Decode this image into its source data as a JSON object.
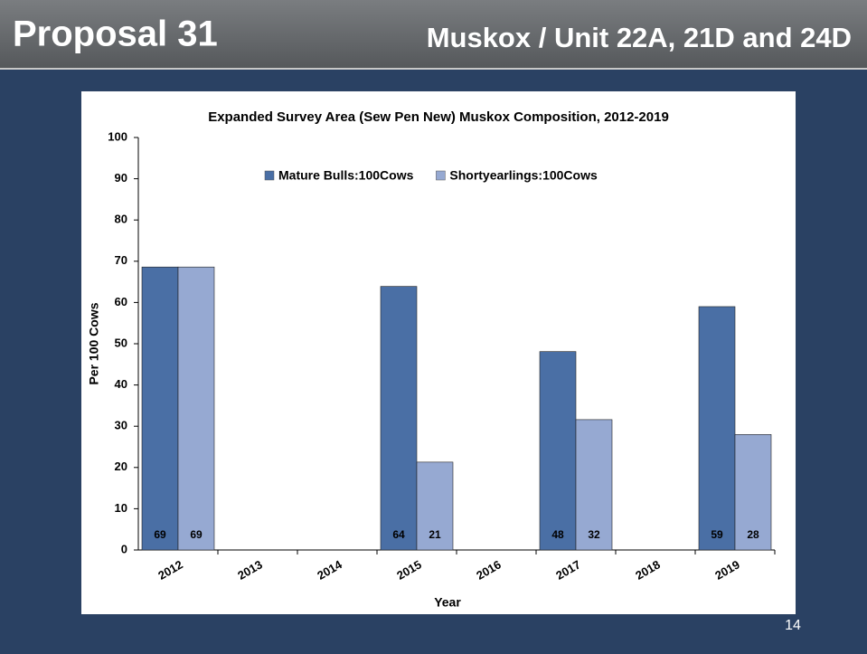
{
  "slide": {
    "title": "Proposal 31",
    "subtitle": "Muskox / Unit 22A, 21D and 24D",
    "page_number": "14"
  },
  "chart_data": {
    "type": "bar",
    "title": "Expanded Survey Area (Sew Pen New) Muskox Composition, 2012-2019",
    "x_label": "Year",
    "y_label": "Per 100 Cows",
    "categories": [
      "2012",
      "2013",
      "2014",
      "2015",
      "2016",
      "2017",
      "2018",
      "2019"
    ],
    "series": [
      {
        "name": "Mature Bulls:100Cows",
        "color": "#4a6fa5",
        "values": [
          68.6,
          null,
          null,
          63.9,
          null,
          48.1,
          null,
          59
        ],
        "value_labels": [
          "69",
          null,
          null,
          "64",
          null,
          "48",
          null,
          "59"
        ]
      },
      {
        "name": "Shortyearlings:100Cows",
        "color": "#96a9d2",
        "values": [
          68.6,
          null,
          null,
          21.3,
          null,
          31.6,
          null,
          28
        ],
        "value_labels": [
          "69",
          null,
          null,
          "21",
          null,
          "32",
          null,
          "28"
        ]
      }
    ],
    "ylim": [
      0,
      100
    ],
    "yticks": [
      0,
      10,
      20,
      30,
      40,
      50,
      60,
      70,
      80,
      90,
      100
    ],
    "grid": false,
    "legend": "top"
  }
}
